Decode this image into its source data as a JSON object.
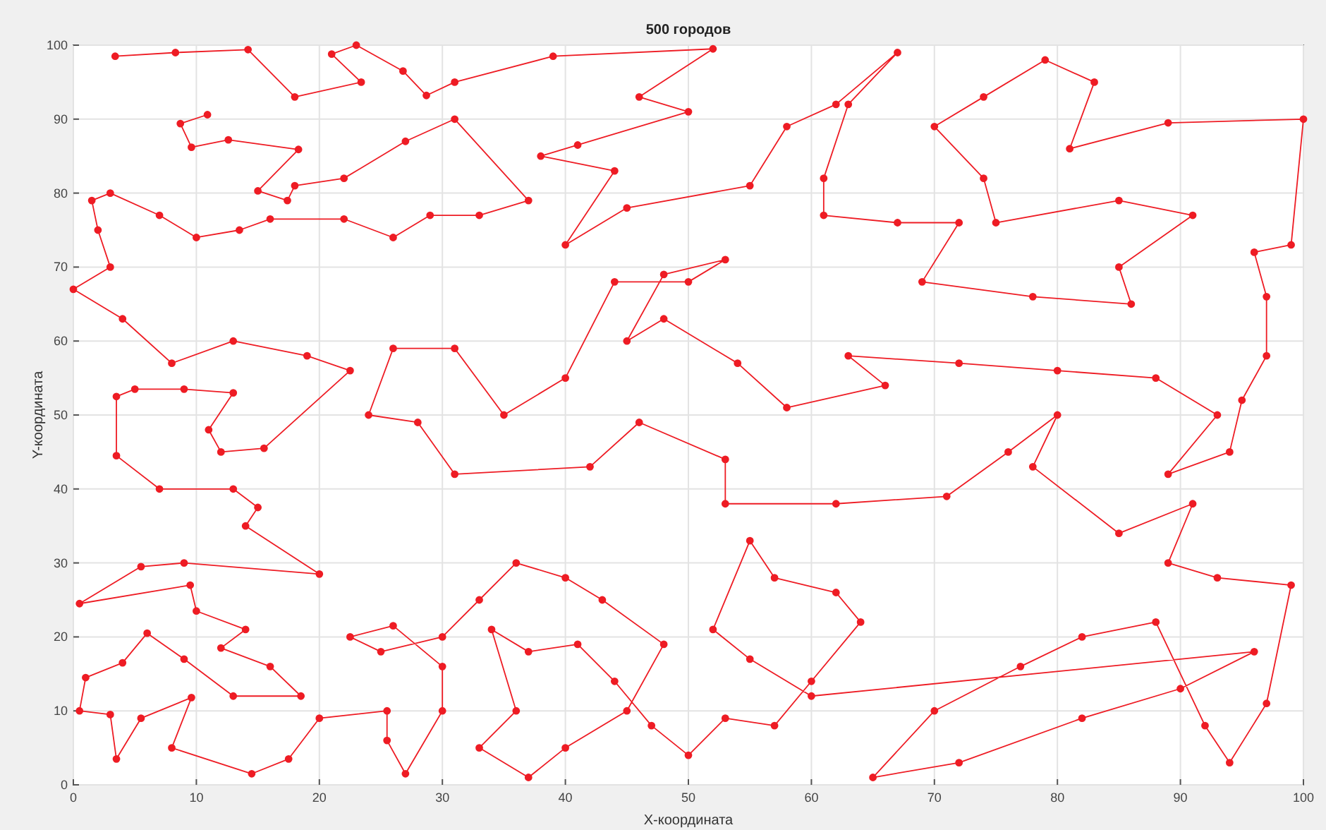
{
  "chart_data": {
    "type": "line",
    "title": "500 городов",
    "xlabel": "X-координата",
    "ylabel": "Y-координата",
    "xlim": [
      0,
      100
    ],
    "ylim": [
      0,
      100
    ],
    "xticks": [
      0,
      10,
      20,
      30,
      40,
      50,
      60,
      70,
      80,
      90,
      100
    ],
    "yticks": [
      0,
      10,
      20,
      30,
      40,
      50,
      60,
      70,
      80,
      90,
      100
    ],
    "grid": true,
    "marker": "circle",
    "line_style": "solid",
    "x": [
      3.4,
      8.3,
      14.2,
      18,
      23.4,
      21,
      23,
      26.8,
      28.7,
      31,
      39,
      52,
      46,
      50,
      41,
      38,
      44,
      40,
      45,
      55,
      58,
      62,
      67,
      63,
      61,
      61,
      67,
      72,
      69,
      78,
      86,
      85,
      91,
      85,
      75,
      74,
      70,
      74,
      79,
      83,
      81,
      89,
      100,
      99,
      96,
      97,
      97,
      95,
      94,
      89,
      93,
      88,
      80,
      72,
      63,
      66,
      58,
      54,
      48,
      45,
      48,
      53,
      50,
      44,
      40,
      35,
      31,
      26,
      24,
      28,
      31,
      42,
      46,
      53,
      53,
      62,
      71,
      76,
      80,
      78,
      85,
      91,
      89,
      93,
      99,
      97,
      94,
      92,
      88,
      82,
      77,
      70,
      65,
      72,
      82,
      90,
      96,
      60,
      55,
      52,
      55,
      57,
      62,
      64,
      60,
      57,
      53,
      50,
      47,
      44,
      41,
      37,
      34,
      36,
      33,
      37,
      40,
      45,
      48,
      43,
      40,
      36,
      33,
      30,
      25,
      22.5,
      26,
      30,
      30,
      27,
      25.5,
      25.5,
      20,
      17.5,
      14.5,
      8,
      9.6,
      5.5,
      3.5,
      3,
      0.5,
      1,
      4,
      6,
      9,
      13,
      18.5,
      16,
      12,
      14,
      10,
      9.5,
      0.5,
      5.5,
      9,
      20,
      14,
      15,
      13,
      7,
      3.5,
      3.5,
      5,
      9,
      13,
      11,
      12,
      15.5,
      22.5,
      19,
      13,
      8,
      4,
      0,
      3,
      2,
      1.5,
      3,
      7,
      10,
      13.5,
      16,
      22,
      26,
      29,
      33,
      37,
      31,
      27,
      22,
      18,
      17.4,
      15,
      18.3,
      12.6,
      9.6,
      8.7,
      10.9
    ],
    "values": [
      98.5,
      99,
      99.4,
      93,
      95,
      98.8,
      100,
      96.5,
      93.2,
      95,
      98.5,
      99.5,
      93,
      91,
      86.5,
      85,
      83,
      73,
      78,
      81,
      89,
      92,
      99,
      92,
      82,
      77,
      76,
      76,
      68,
      66,
      65,
      70,
      77,
      79,
      76,
      82,
      89,
      93,
      98,
      95,
      86,
      89.5,
      90,
      73,
      72,
      66,
      58,
      52,
      45,
      42,
      50,
      55,
      56,
      57,
      58,
      54,
      51,
      57,
      63,
      60,
      69,
      71,
      68,
      68,
      55,
      50,
      59,
      59,
      50,
      49,
      42,
      43,
      49,
      44,
      38,
      38,
      39,
      45,
      50,
      43,
      34,
      38,
      30,
      28,
      27,
      11,
      3,
      8,
      22,
      20,
      16,
      10,
      1,
      3,
      9,
      13,
      18,
      12,
      17,
      21,
      33,
      28,
      26,
      22,
      14,
      8,
      9,
      4,
      8,
      14,
      19,
      18,
      21,
      10,
      5,
      1,
      5,
      10,
      19,
      25,
      28,
      30,
      25,
      20,
      18,
      20,
      21.5,
      16,
      10,
      1.5,
      6,
      10,
      9,
      3.5,
      1.5,
      5,
      11.8,
      9,
      3.5,
      9.5,
      10,
      14.5,
      16.5,
      20.5,
      17,
      12,
      12,
      16,
      18.5,
      21,
      23.5,
      27,
      24.5,
      29.5,
      30,
      28.5,
      35,
      37.5,
      40,
      40,
      44.5,
      52.5,
      53.5,
      53.5,
      53,
      48,
      45,
      45.5,
      56,
      58,
      60,
      57,
      63,
      67,
      70,
      75,
      79,
      80,
      77,
      74,
      75,
      76.5,
      76.5,
      74,
      77,
      77,
      79,
      90,
      87,
      82,
      81,
      79,
      80.3,
      85.9,
      87.2,
      86.2,
      89.4,
      90.6
    ]
  }
}
